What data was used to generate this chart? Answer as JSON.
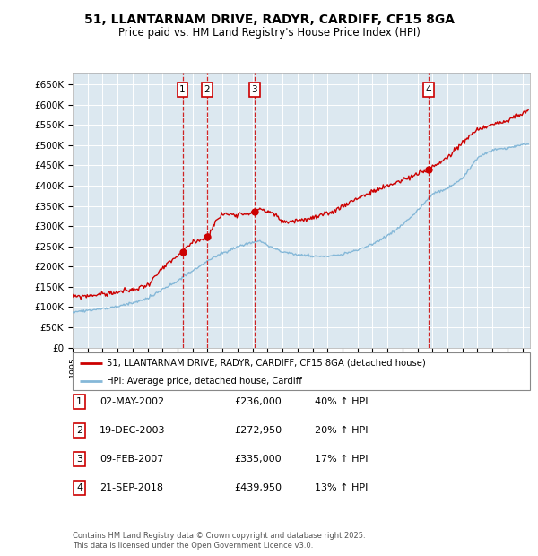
{
  "title": "51, LLANTARNAM DRIVE, RADYR, CARDIFF, CF15 8GA",
  "subtitle": "Price paid vs. HM Land Registry's House Price Index (HPI)",
  "ylim": [
    0,
    680000
  ],
  "yticks": [
    0,
    50000,
    100000,
    150000,
    200000,
    250000,
    300000,
    350000,
    400000,
    450000,
    500000,
    550000,
    600000,
    650000
  ],
  "ytick_labels": [
    "£0",
    "£50K",
    "£100K",
    "£150K",
    "£200K",
    "£250K",
    "£300K",
    "£350K",
    "£400K",
    "£450K",
    "£500K",
    "£550K",
    "£600K",
    "£650K"
  ],
  "xlim_start": 1995.0,
  "xlim_end": 2025.5,
  "plot_bg_color": "#dce8f0",
  "red_line_color": "#cc0000",
  "blue_line_color": "#85b8d8",
  "transaction_line_color": "#cc0000",
  "transactions": [
    {
      "num": 1,
      "date": "02-MAY-2002",
      "price": 236000,
      "pct": "40%",
      "year": 2002.33
    },
    {
      "num": 2,
      "date": "19-DEC-2003",
      "price": 272950,
      "pct": "20%",
      "year": 2003.96
    },
    {
      "num": 3,
      "date": "09-FEB-2007",
      "price": 335000,
      "pct": "17%",
      "year": 2007.12
    },
    {
      "num": 4,
      "date": "21-SEP-2018",
      "price": 439950,
      "pct": "13%",
      "year": 2018.72
    }
  ],
  "legend_label_red": "51, LLANTARNAM DRIVE, RADYR, CARDIFF, CF15 8GA (detached house)",
  "legend_label_blue": "HPI: Average price, detached house, Cardiff",
  "footer": "Contains HM Land Registry data © Crown copyright and database right 2025.\nThis data is licensed under the Open Government Licence v3.0.",
  "table_rows": [
    [
      "1",
      "02-MAY-2002",
      "£236,000",
      "40% ↑ HPI"
    ],
    [
      "2",
      "19-DEC-2003",
      "£272,950",
      "20% ↑ HPI"
    ],
    [
      "3",
      "09-FEB-2007",
      "£335,000",
      "17% ↑ HPI"
    ],
    [
      "4",
      "21-SEP-2018",
      "£439,950",
      "13% ↑ HPI"
    ]
  ],
  "red_anchors_x": [
    1995.0,
    1996.0,
    1997.0,
    1998.0,
    1999.0,
    2000.0,
    2001.0,
    2002.33,
    2003.0,
    2003.96,
    2004.5,
    2005.0,
    2006.0,
    2007.12,
    2007.5,
    2008.0,
    2008.5,
    2009.0,
    2010.0,
    2011.0,
    2012.0,
    2013.0,
    2014.0,
    2015.0,
    2016.0,
    2017.0,
    2018.0,
    2018.72,
    2019.5,
    2020.0,
    2021.0,
    2022.0,
    2023.0,
    2024.0,
    2024.5,
    2025.4
  ],
  "red_anchors_y": [
    125000,
    128000,
    132000,
    137000,
    143000,
    155000,
    195000,
    236000,
    260000,
    272950,
    310000,
    330000,
    330000,
    335000,
    345000,
    335000,
    330000,
    310000,
    315000,
    320000,
    330000,
    350000,
    370000,
    385000,
    400000,
    415000,
    430000,
    439950,
    460000,
    470000,
    510000,
    540000,
    555000,
    560000,
    575000,
    585000
  ],
  "blue_anchors_x": [
    1995.0,
    1996.0,
    1997.0,
    1998.0,
    1999.0,
    2000.0,
    2001.0,
    2002.0,
    2003.0,
    2004.0,
    2005.0,
    2006.0,
    2007.0,
    2007.5,
    2008.0,
    2009.0,
    2010.0,
    2011.0,
    2012.0,
    2013.0,
    2014.0,
    2015.0,
    2016.0,
    2017.0,
    2018.0,
    2019.0,
    2020.0,
    2021.0,
    2022.0,
    2023.0,
    2024.0,
    2024.5,
    2025.4
  ],
  "blue_anchors_y": [
    88000,
    91000,
    96000,
    102000,
    110000,
    122000,
    145000,
    165000,
    190000,
    215000,
    235000,
    250000,
    262000,
    265000,
    255000,
    238000,
    232000,
    228000,
    228000,
    233000,
    243000,
    258000,
    278000,
    305000,
    340000,
    380000,
    395000,
    420000,
    470000,
    490000,
    495000,
    500000,
    505000
  ]
}
